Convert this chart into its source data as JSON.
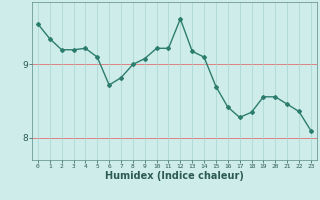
{
  "x": [
    0,
    1,
    2,
    3,
    4,
    5,
    6,
    7,
    8,
    9,
    10,
    11,
    12,
    13,
    14,
    15,
    16,
    17,
    18,
    19,
    20,
    21,
    22,
    23
  ],
  "y": [
    9.55,
    9.35,
    9.2,
    9.2,
    9.22,
    9.1,
    8.72,
    8.82,
    9.0,
    9.08,
    9.22,
    9.22,
    9.62,
    9.18,
    9.1,
    8.7,
    8.42,
    8.28,
    8.35,
    8.56,
    8.56,
    8.46,
    8.36,
    8.1
  ],
  "line_color": "#2d7d6e",
  "marker": "D",
  "markersize": 2.0,
  "linewidth": 1.0,
  "bg_color": "#ceecea",
  "grid_color": "#aad4cf",
  "xlabel": "Humidex (Indice chaleur)",
  "xlabel_fontsize": 7.0,
  "ytick_labels": [
    "8",
    "9"
  ],
  "yticks": [
    8,
    9
  ],
  "ylim": [
    7.7,
    9.85
  ],
  "xlim": [
    -0.5,
    23.5
  ],
  "red_line_color": "#e08080",
  "xtick_labels": [
    "0",
    "1",
    "2",
    "3",
    "4",
    "5",
    "6",
    "7",
    "8",
    "9",
    "10",
    "11",
    "12",
    "13",
    "14",
    "15",
    "16",
    "17",
    "18",
    "19",
    "20",
    "21",
    "22",
    "23"
  ]
}
